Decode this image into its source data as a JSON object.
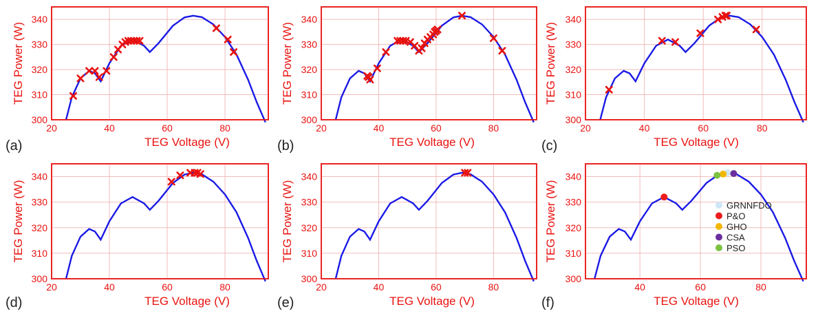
{
  "colors": {
    "frame": "#e8120f",
    "curve": "#1a1ae6",
    "marker": "#e8120f",
    "grid": "#f1bcbc"
  },
  "chart_data": [
    {
      "panel_label": "(a)",
      "type": "line",
      "xlabel": "TEG Voltage (V)",
      "ylabel": "TEG Power (W)",
      "xlim": [
        20,
        95
      ],
      "ylim": [
        300,
        345
      ],
      "xticks": [
        20,
        40,
        60,
        80
      ],
      "yticks": [
        300,
        310,
        320,
        330,
        340
      ],
      "grid": true,
      "curve": {
        "x": [
          25,
          27,
          30,
          33,
          35,
          37,
          40,
          44,
          48,
          52,
          54,
          57,
          62,
          66,
          69,
          72,
          76,
          80,
          84,
          88,
          91,
          94
        ],
        "y": [
          300,
          309,
          316.5,
          319.5,
          318.5,
          315.3,
          322.5,
          329.5,
          332,
          329.5,
          327,
          330.5,
          337.5,
          340.8,
          341.5,
          340.9,
          338,
          333,
          326,
          316,
          307,
          299
        ]
      },
      "markers": {
        "x": [
          27.5,
          30,
          33,
          35,
          36.5,
          39,
          41.5,
          43,
          44.5,
          45.5,
          46.5,
          47.5,
          48.5,
          49.5,
          50.5,
          77,
          81,
          83
        ],
        "y": [
          309.5,
          316.5,
          319.5,
          319.5,
          317,
          319.5,
          325,
          328,
          330,
          331,
          331.5,
          331.5,
          331.5,
          331.5,
          331.5,
          336.5,
          332,
          327
        ]
      }
    },
    {
      "panel_label": "(b)",
      "type": "line",
      "xlabel": "TEG Voltage (V)",
      "ylabel": "TEG Power (W)",
      "xlim": [
        20,
        95
      ],
      "ylim": [
        300,
        345
      ],
      "xticks": [
        20,
        40,
        60,
        80
      ],
      "yticks": [
        300,
        310,
        320,
        330,
        340
      ],
      "grid": true,
      "curve": {
        "x": [
          25,
          27,
          30,
          33,
          35,
          37,
          40,
          44,
          48,
          52,
          54,
          57,
          62,
          66,
          69,
          72,
          76,
          80,
          84,
          88,
          91,
          94
        ],
        "y": [
          300,
          309,
          316.5,
          319.5,
          318.5,
          315.3,
          322.5,
          329.5,
          332,
          329.5,
          327,
          330.5,
          337.5,
          340.8,
          341.5,
          340.9,
          338,
          333,
          326,
          316,
          307,
          299
        ]
      },
      "markers": {
        "x": [
          36,
          36.5,
          37,
          39.5,
          42.5,
          46.5,
          47.5,
          48.5,
          49.5,
          51,
          52.5,
          54,
          55,
          56,
          57,
          58,
          59,
          59.5,
          60,
          60.5,
          69,
          80,
          83
        ],
        "y": [
          317.5,
          317,
          316,
          320.5,
          327,
          331.5,
          331.5,
          331.5,
          331.5,
          331,
          329.5,
          327.5,
          328.5,
          330.5,
          332,
          333,
          334,
          335,
          335.5,
          336,
          341.5,
          332.5,
          327.5
        ]
      }
    },
    {
      "panel_label": "(c)",
      "type": "line",
      "xlabel": "TEG Voltage (V)",
      "ylabel": "TEG Power (W)",
      "xlim": [
        20,
        95
      ],
      "ylim": [
        300,
        345
      ],
      "xticks": [
        20,
        40,
        60,
        80
      ],
      "yticks": [
        300,
        310,
        320,
        330,
        340
      ],
      "grid": true,
      "curve": {
        "x": [
          25,
          27,
          30,
          33,
          35,
          37,
          40,
          44,
          48,
          52,
          54,
          57,
          62,
          66,
          69,
          72,
          76,
          80,
          84,
          88,
          91,
          94
        ],
        "y": [
          300,
          309,
          316.5,
          319.5,
          318.5,
          315.3,
          322.5,
          329.5,
          332,
          329.5,
          327,
          330.5,
          337.5,
          340.8,
          341.5,
          340.9,
          338,
          333,
          326,
          316,
          307,
          299
        ]
      },
      "markers": {
        "x": [
          28,
          46,
          50.5,
          59,
          65,
          66.5,
          67.5,
          68,
          78
        ],
        "y": [
          312,
          331.5,
          331,
          334.5,
          340,
          341,
          341.5,
          341.5,
          336
        ]
      }
    },
    {
      "panel_label": "(d)",
      "type": "line",
      "xlabel": "TEG Voltage (V)",
      "ylabel": "TEG Power (W)",
      "xlim": [
        20,
        95
      ],
      "ylim": [
        300,
        345
      ],
      "xticks": [
        20,
        40,
        60,
        80
      ],
      "yticks": [
        300,
        310,
        320,
        330,
        340
      ],
      "grid": true,
      "curve": {
        "x": [
          25,
          27,
          30,
          33,
          35,
          37,
          40,
          44,
          48,
          52,
          54,
          57,
          62,
          66,
          69,
          72,
          76,
          80,
          84,
          88,
          91,
          94
        ],
        "y": [
          300,
          309,
          316.5,
          319.5,
          318.5,
          315.3,
          322.5,
          329.5,
          332,
          329.5,
          327,
          330.5,
          337.5,
          340.8,
          341.5,
          340.9,
          338,
          333,
          326,
          316,
          307,
          299
        ]
      },
      "markers": {
        "x": [
          61.5,
          64.5,
          68,
          69.5,
          70.5,
          71.5
        ],
        "y": [
          338,
          340.5,
          341.5,
          341.5,
          341.5,
          341
        ]
      }
    },
    {
      "panel_label": "(e)",
      "type": "line",
      "xlabel": "TEG Voltage (V)",
      "ylabel": "TEG Power (W)",
      "xlim": [
        20,
        95
      ],
      "ylim": [
        300,
        345
      ],
      "xticks": [
        20,
        40,
        60,
        80
      ],
      "yticks": [
        300,
        310,
        320,
        330,
        340
      ],
      "grid": true,
      "curve": {
        "x": [
          25,
          27,
          30,
          33,
          35,
          37,
          40,
          44,
          48,
          52,
          54,
          57,
          62,
          66,
          69,
          72,
          76,
          80,
          84,
          88,
          91,
          94
        ],
        "y": [
          300,
          309,
          316.5,
          319.5,
          318.5,
          315.3,
          322.5,
          329.5,
          332,
          329.5,
          327,
          330.5,
          337.5,
          340.8,
          341.5,
          340.9,
          338,
          333,
          326,
          316,
          307,
          299
        ]
      },
      "markers": {
        "x": [
          70,
          71
        ],
        "y": [
          341.5,
          341.5
        ]
      }
    },
    {
      "panel_label": "(f)",
      "type": "line",
      "xlabel": "TEG Voltage (V)",
      "ylabel": "TEG Power (W)",
      "xlim": [
        22,
        95
      ],
      "ylim": [
        300,
        345
      ],
      "xticks": [
        40,
        60,
        80
      ],
      "yticks": [
        300,
        310,
        320,
        330,
        340
      ],
      "grid": true,
      "curve": {
        "x": [
          25,
          27,
          30,
          33,
          35,
          37,
          40,
          44,
          48,
          52,
          54,
          57,
          62,
          66,
          69,
          72,
          76,
          80,
          84,
          88,
          91,
          94
        ],
        "y": [
          300,
          309,
          316.5,
          319.5,
          318.5,
          315.3,
          322.5,
          329.5,
          332,
          329.5,
          327,
          330.5,
          337.5,
          340.8,
          341.5,
          340.9,
          338,
          333,
          326,
          316,
          307,
          299
        ]
      },
      "points": [
        {
          "name": "GRNNFDO",
          "color": "#cfe6f7",
          "x": 69,
          "y": 341.5
        },
        {
          "name": "P&O",
          "color": "#ee1c1c",
          "x": 48,
          "y": 332
        },
        {
          "name": "GHO",
          "color": "#f2b705",
          "x": 67.5,
          "y": 341
        },
        {
          "name": "CSA",
          "color": "#6b2e9e",
          "x": 71,
          "y": 341.2
        },
        {
          "name": "PSO",
          "color": "#7dc243",
          "x": 65.5,
          "y": 340.5
        }
      ],
      "legend": [
        "GRNNFDO",
        "P&O",
        "GHO",
        "CSA",
        "PSO"
      ],
      "legend_position": "center-right"
    }
  ]
}
